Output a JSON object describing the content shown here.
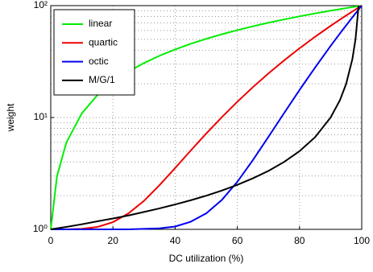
{
  "chart_data": {
    "type": "line",
    "xlabel": "DC utilization (%)",
    "ylabel": "weight",
    "x": [
      0,
      2,
      5,
      10,
      15,
      20,
      25,
      30,
      35,
      40,
      45,
      50,
      55,
      60,
      65,
      70,
      75,
      80,
      85,
      90,
      93,
      95,
      97,
      98,
      99,
      100
    ],
    "series": [
      {
        "name": "linear",
        "color": "#00ee00",
        "values": [
          1,
          2.98,
          5.95,
          10.9,
          15.85,
          20.8,
          25.75,
          30.7,
          35.65,
          40.6,
          45.55,
          50.5,
          55.45,
          60.4,
          65.35,
          70.3,
          75.25,
          80.2,
          85.15,
          90.1,
          93.07,
          95.05,
          97.03,
          98.02,
          99.01,
          100
        ]
      },
      {
        "name": "quartic",
        "color": "#ee0000",
        "values": [
          1,
          1,
          1,
          1.01,
          1.05,
          1.16,
          1.39,
          1.8,
          2.49,
          3.53,
          5.06,
          7.19,
          10.06,
          13.83,
          18.67,
          24.77,
          32.32,
          41.55,
          52.68,
          65.95,
          75.06,
          81.64,
          88.64,
          92.31,
          96.1,
          100
        ]
      },
      {
        "name": "octic",
        "color": "#0000ee",
        "values": [
          1,
          1,
          1,
          1,
          1,
          1,
          1,
          1.01,
          1.02,
          1.06,
          1.17,
          1.39,
          1.83,
          2.66,
          4.16,
          6.71,
          10.91,
          17.61,
          27.98,
          43.62,
          56.4,
          66.68,
          78.59,
          85.23,
          92.35,
          100
        ]
      },
      {
        "name": "M/G/1",
        "color": "#000000",
        "values": [
          1,
          1.02,
          1.05,
          1.11,
          1.18,
          1.25,
          1.33,
          1.43,
          1.54,
          1.67,
          1.82,
          2,
          2.22,
          2.5,
          2.86,
          3.33,
          4,
          5,
          6.67,
          10,
          14.29,
          20,
          33.33,
          50,
          100,
          null
        ]
      }
    ],
    "xlim": [
      0,
      100
    ],
    "xticks": [
      0,
      20,
      40,
      60,
      80,
      100
    ],
    "ylim": [
      1,
      100
    ],
    "ylog": true,
    "yticks": [
      {
        "value": 1,
        "label": "10⁰"
      },
      {
        "value": 10,
        "label": "10¹"
      },
      {
        "value": 100,
        "label": "10²"
      }
    ],
    "grid": true,
    "legend": "upper left"
  }
}
